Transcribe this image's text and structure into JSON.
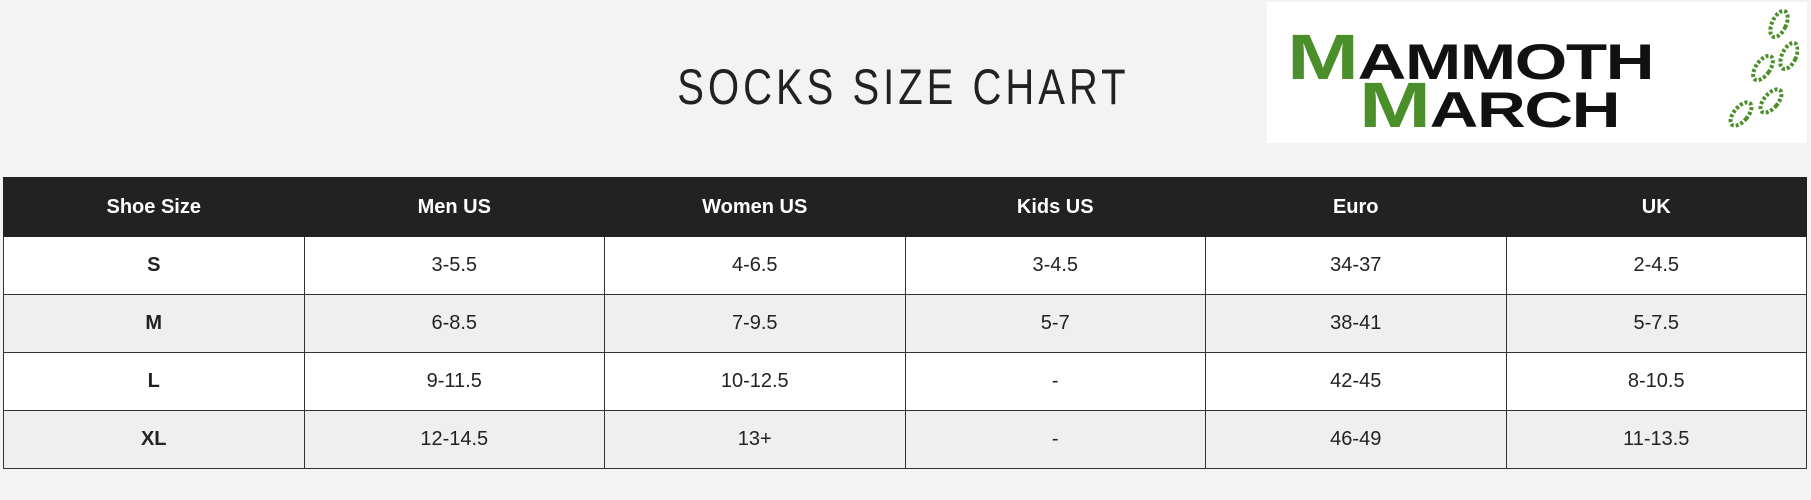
{
  "title": "SOCKS SIZE CHART",
  "logo": {
    "line1_initial": "M",
    "line1_rest": "AMMOTH",
    "line2_initial": "M",
    "line2_rest": "ARCH",
    "brand_green": "#4a8f2a"
  },
  "table": {
    "headers": [
      "Shoe Size",
      "Men US",
      "Women US",
      "Kids US",
      "Euro",
      "UK"
    ],
    "rows": [
      [
        "S",
        "3-5.5",
        "4-6.5",
        "3-4.5",
        "34-37",
        "2-4.5"
      ],
      [
        "M",
        "6-8.5",
        "7-9.5",
        "5-7",
        "38-41",
        "5-7.5"
      ],
      [
        "L",
        "9-11.5",
        "10-12.5",
        "-",
        "42-45",
        "8-10.5"
      ],
      [
        "XL",
        "12-14.5",
        "13+",
        "-",
        "46-49",
        "11-13.5"
      ]
    ]
  }
}
